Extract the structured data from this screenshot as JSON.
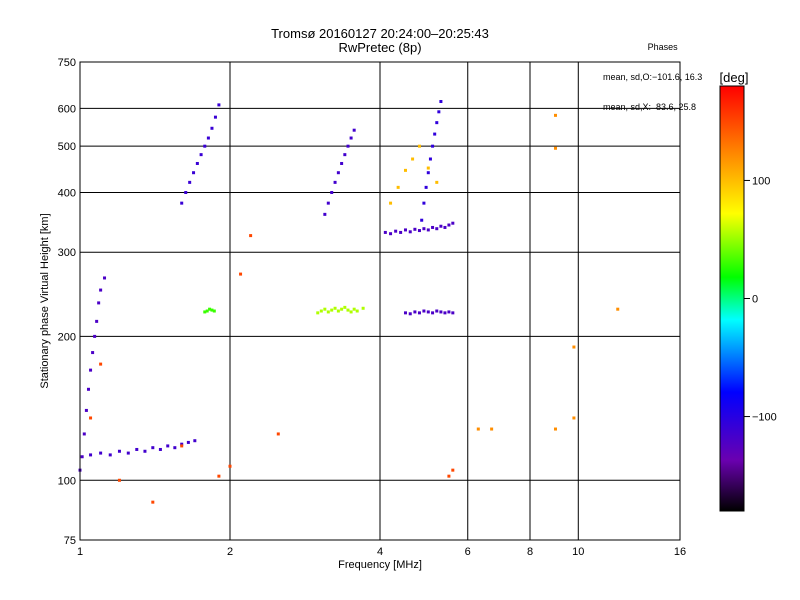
{
  "header": {
    "title_line1": "Tromsø 20160127 20:24:00–20:25:43",
    "title_line2": "RwPretec (8p)"
  },
  "phases_box": {
    "title": "Phases",
    "line_o": "mean, sd,O:−101.6, 16.3",
    "line_x": "mean, sd,X:  83.6, 25.8"
  },
  "colorbar": {
    "unit_label": "[deg]",
    "tick_labels": [
      "100",
      "0",
      "−100"
    ],
    "tick_values": [
      100,
      0,
      -100
    ],
    "range": [
      -180,
      180
    ]
  },
  "chart_data": {
    "type": "scatter",
    "xlabel": "Frequency [MHz]",
    "ylabel": "Stationary phase Virtual Height [km]",
    "xscale": "log",
    "yscale": "log",
    "xlim": [
      1,
      16
    ],
    "ylim": [
      75,
      750
    ],
    "x_ticks": [
      1,
      2,
      4,
      6,
      8,
      10,
      16
    ],
    "x_tick_labels": [
      "1",
      "2",
      "4",
      "6",
      "8",
      "10",
      "16"
    ],
    "y_ticks": [
      75,
      100,
      200,
      300,
      400,
      500,
      600,
      750
    ],
    "y_tick_labels": [
      "75",
      "100",
      "200",
      "300",
      "400",
      "500",
      "600",
      "750"
    ],
    "grid": true,
    "groups": [
      {
        "x": [
          1.0,
          1.01,
          1.02,
          1.03,
          1.04,
          1.05,
          1.06,
          1.07,
          1.08,
          1.09,
          1.1,
          1.12
        ],
        "y": [
          105,
          112,
          125,
          140,
          155,
          170,
          185,
          200,
          215,
          235,
          250,
          265
        ],
        "phase": -120
      },
      {
        "x": [
          1.05,
          1.1,
          1.15,
          1.2,
          1.25,
          1.3,
          1.35,
          1.4,
          1.45,
          1.5,
          1.55,
          1.6,
          1.65,
          1.7
        ],
        "y": [
          113,
          114,
          113,
          115,
          114,
          116,
          115,
          117,
          116,
          118,
          117,
          119,
          120,
          121
        ],
        "phase": -115
      },
      {
        "x": [
          1.6,
          1.63,
          1.66,
          1.69,
          1.72,
          1.75,
          1.78,
          1.81,
          1.84,
          1.87,
          1.9
        ],
        "y": [
          380,
          400,
          420,
          440,
          460,
          480,
          500,
          520,
          545,
          575,
          610
        ],
        "phase": -110
      },
      {
        "x": [
          1.78,
          1.8,
          1.82,
          1.84,
          1.86
        ],
        "y": [
          225,
          226,
          228,
          227,
          226
        ],
        "phase": 30
      },
      {
        "x": [
          3.0,
          3.05,
          3.1,
          3.15,
          3.2,
          3.25,
          3.3,
          3.35,
          3.4,
          3.45,
          3.5,
          3.55,
          3.6,
          3.7
        ],
        "y": [
          224,
          226,
          228,
          225,
          227,
          229,
          226,
          228,
          230,
          227,
          225,
          228,
          226,
          229
        ],
        "phase": 55
      },
      {
        "x": [
          3.1,
          3.15,
          3.2,
          3.25,
          3.3,
          3.35,
          3.4,
          3.45,
          3.5,
          3.55
        ],
        "y": [
          360,
          380,
          400,
          420,
          440,
          460,
          480,
          500,
          520,
          540
        ],
        "phase": -115
      },
      {
        "x": [
          4.1,
          4.2,
          4.3,
          4.4,
          4.5,
          4.6,
          4.7,
          4.8,
          4.9,
          5.0,
          5.1,
          5.2,
          5.3,
          5.4,
          5.5,
          5.6
        ],
        "y": [
          330,
          328,
          332,
          330,
          334,
          331,
          335,
          333,
          336,
          334,
          338,
          336,
          340,
          338,
          342,
          345
        ],
        "phase": -120
      },
      {
        "x": [
          4.85,
          4.9,
          4.95,
          5.0,
          5.05,
          5.1,
          5.15,
          5.2,
          5.25,
          5.3
        ],
        "y": [
          350,
          380,
          410,
          440,
          470,
          500,
          530,
          560,
          590,
          620
        ],
        "phase": -105
      },
      {
        "x": [
          4.2,
          4.35,
          4.5,
          4.65,
          4.8,
          5.0,
          5.2
        ],
        "y": [
          380,
          410,
          445,
          470,
          500,
          450,
          420
        ],
        "phase": 100
      },
      {
        "x": [
          4.5,
          4.6,
          4.7,
          4.8,
          4.9,
          5.0,
          5.1,
          5.2,
          5.3,
          5.4,
          5.5,
          5.6
        ],
        "y": [
          224,
          223,
          225,
          224,
          226,
          225,
          224,
          226,
          225,
          224,
          225,
          224
        ],
        "phase": -120
      },
      {
        "x": [
          6.3,
          6.7,
          9.0,
          9.0,
          9.0,
          9.8,
          9.8,
          12.0
        ],
        "y": [
          128,
          128,
          128,
          495,
          580,
          135,
          190,
          228
        ],
        "phase": 120
      },
      {
        "x": [
          1.05,
          1.1,
          1.2,
          1.4,
          1.6,
          1.9,
          2.0,
          2.1,
          2.2,
          2.5,
          5.5,
          5.6
        ],
        "y": [
          135,
          175,
          100,
          90,
          118,
          102,
          107,
          270,
          325,
          125,
          102,
          105
        ],
        "phase": 150
      }
    ]
  }
}
